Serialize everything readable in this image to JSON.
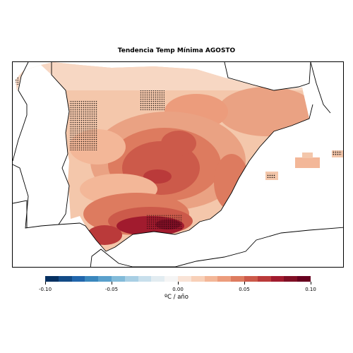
{
  "title": "Tendencia Temp Mínima AGOSTO",
  "legend": {
    "unit": "ºC / año",
    "min": -0.1,
    "max": 0.1,
    "ticks": [
      {
        "value": -0.1,
        "label": "-0.10"
      },
      {
        "value": -0.05,
        "label": "-0.05"
      },
      {
        "value": 0.0,
        "label": "0.00"
      },
      {
        "value": 0.05,
        "label": "0.05"
      },
      {
        "value": 0.1,
        "label": "0.10"
      }
    ],
    "colors": [
      "#053061",
      "#134b87",
      "#2166ac",
      "#3a87bd",
      "#5aa0cc",
      "#82bbd9",
      "#a8cfe4",
      "#c8dfec",
      "#e2ecf1",
      "#f5f5f5",
      "#f9e3d6",
      "#f8d0b8",
      "#f3b798",
      "#ec9c7c",
      "#dd7b5f",
      "#cc5a4a",
      "#ba3a3a",
      "#a11b2e",
      "#800f25",
      "#67001f"
    ]
  },
  "map": {
    "stipple_meaning": "dots",
    "colors": {
      "land_light": "#f4c7ab",
      "land_mid": "#eaa283",
      "land_strong": "#d6634f",
      "land_darker": "#c43d3c",
      "land_darkest": "#a31b2c",
      "coast": "#000000"
    }
  }
}
